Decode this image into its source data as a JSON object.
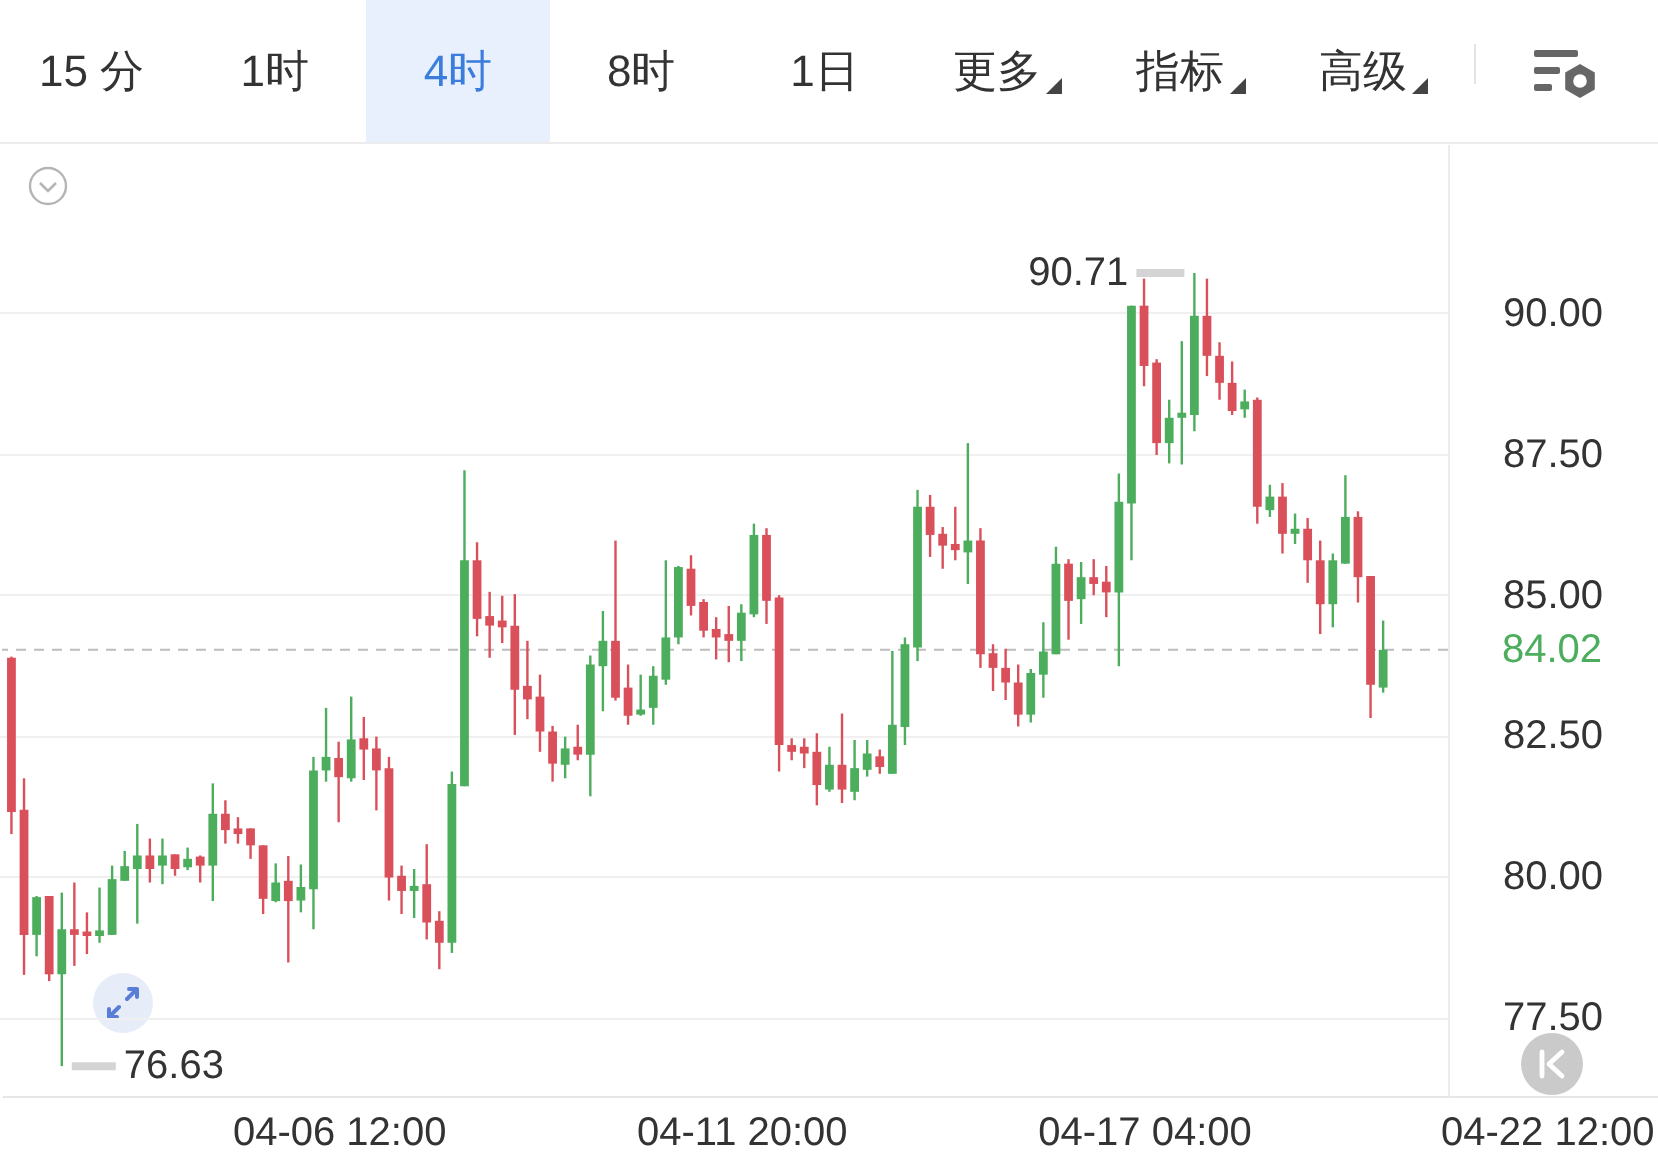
{
  "chart_data": {
    "type": "candlestick",
    "x": [
      "--04-02T04:00",
      "--04-02T08:00",
      "--04-02T12:00",
      "--04-02T16:00",
      "--04-02T20:00",
      "--04-03T00:00",
      "--04-03T04:00",
      "--04-03T08:00",
      "--04-03T12:00",
      "--04-03T16:00",
      "--04-03T20:00",
      "--04-04T00:00",
      "--04-04T04:00",
      "--04-04T08:00",
      "--04-04T12:00",
      "--04-04T16:00",
      "--04-04T20:00",
      "--04-05T00:00",
      "--04-05T04:00",
      "--04-05T08:00",
      "--04-05T12:00",
      "--04-05T16:00",
      "--04-05T20:00",
      "--04-06T00:00",
      "--04-06T04:00",
      "--04-06T08:00",
      "--04-06T12:00",
      "--04-06T16:00",
      "--04-06T20:00",
      "--04-07T00:00",
      "--04-07T04:00",
      "--04-07T08:00",
      "--04-07T12:00",
      "--04-07T16:00",
      "--04-07T20:00",
      "--04-08T00:00",
      "--04-08T04:00",
      "--04-08T08:00",
      "--04-08T12:00",
      "--04-08T16:00",
      "--04-08T20:00",
      "--04-09T00:00",
      "--04-09T04:00",
      "--04-09T08:00",
      "--04-09T12:00",
      "--04-09T16:00",
      "--04-09T20:00",
      "--04-10T00:00",
      "--04-10T04:00",
      "--04-10T08:00",
      "--04-10T12:00",
      "--04-10T16:00",
      "--04-10T20:00",
      "--04-11T00:00",
      "--04-11T04:00",
      "--04-11T08:00",
      "--04-11T12:00",
      "--04-11T16:00",
      "--04-11T20:00",
      "--04-12T00:00",
      "--04-12T04:00",
      "--04-12T08:00",
      "--04-12T12:00",
      "--04-12T16:00",
      "--04-12T20:00",
      "--04-13T00:00",
      "--04-13T04:00",
      "--04-13T08:00",
      "--04-13T12:00",
      "--04-13T16:00",
      "--04-13T20:00",
      "--04-14T00:00",
      "--04-14T04:00",
      "--04-14T08:00",
      "--04-14T12:00",
      "--04-14T16:00",
      "--04-14T20:00",
      "--04-15T00:00",
      "--04-15T04:00",
      "--04-15T08:00",
      "--04-15T12:00",
      "--04-15T16:00",
      "--04-15T20:00",
      "--04-16T00:00",
      "--04-16T04:00",
      "--04-16T08:00",
      "--04-16T12:00",
      "--04-16T16:00",
      "--04-16T20:00",
      "--04-17T00:00",
      "--04-17T04:00",
      "--04-17T08:00",
      "--04-17T12:00",
      "--04-17T16:00",
      "--04-17T20:00",
      "--04-18T00:00",
      "--04-18T04:00",
      "--04-18T08:00",
      "--04-18T12:00",
      "--04-18T16:00",
      "--04-18T20:00",
      "--04-19T00:00",
      "--04-19T04:00",
      "--04-19T08:00",
      "--04-19T12:00",
      "--04-19T16:00",
      "--04-19T20:00",
      "--04-20T00:00",
      "--04-20T04:00",
      "--04-20T08:00"
    ],
    "ohlc": [
      [
        83.88,
        83.9,
        80.75,
        81.14
      ],
      [
        81.18,
        81.74,
        78.25,
        78.96
      ],
      [
        78.96,
        79.65,
        78.58,
        79.63
      ],
      [
        79.65,
        79.65,
        78.14,
        78.26
      ],
      [
        78.26,
        79.71,
        76.63,
        79.06
      ],
      [
        79.06,
        79.89,
        78.41,
        78.96
      ],
      [
        79.02,
        79.36,
        78.62,
        78.94
      ],
      [
        78.94,
        79.8,
        78.82,
        79.04
      ],
      [
        78.96,
        80.19,
        78.96,
        79.95
      ],
      [
        79.92,
        80.45,
        79.92,
        80.18
      ],
      [
        80.13,
        80.93,
        79.16,
        80.37
      ],
      [
        80.37,
        80.67,
        79.89,
        80.13
      ],
      [
        80.19,
        80.67,
        79.86,
        80.37
      ],
      [
        80.39,
        80.39,
        80.01,
        80.13
      ],
      [
        80.16,
        80.51,
        80.11,
        80.31
      ],
      [
        80.35,
        80.37,
        79.89,
        80.19
      ],
      [
        80.19,
        81.65,
        79.56,
        81.11
      ],
      [
        81.11,
        81.35,
        80.58,
        80.82
      ],
      [
        80.85,
        81.05,
        80.58,
        80.75
      ],
      [
        80.85,
        80.85,
        80.31,
        80.55
      ],
      [
        80.55,
        80.55,
        79.33,
        79.6
      ],
      [
        79.56,
        80.23,
        79.54,
        79.89
      ],
      [
        79.92,
        80.36,
        78.47,
        79.56
      ],
      [
        79.57,
        80.21,
        79.36,
        79.81
      ],
      [
        79.77,
        82.12,
        79.06,
        81.88
      ],
      [
        81.88,
        82.99,
        81.68,
        82.12
      ],
      [
        82.1,
        82.39,
        80.96,
        81.76
      ],
      [
        81.74,
        83.19,
        81.68,
        82.43
      ],
      [
        82.45,
        82.83,
        81.71,
        82.25
      ],
      [
        82.27,
        82.48,
        81.17,
        81.88
      ],
      [
        81.92,
        82.12,
        79.57,
        79.98
      ],
      [
        80.01,
        80.19,
        79.33,
        79.74
      ],
      [
        79.74,
        80.13,
        79.26,
        79.83
      ],
      [
        79.86,
        80.57,
        78.88,
        79.18
      ],
      [
        79.21,
        79.38,
        78.35,
        78.82
      ],
      [
        78.82,
        81.86,
        78.64,
        81.64
      ],
      [
        81.6,
        87.21,
        81.6,
        85.61
      ],
      [
        85.61,
        85.93,
        84.26,
        84.57
      ],
      [
        84.62,
        85.05,
        83.88,
        84.45
      ],
      [
        84.54,
        84.98,
        84.14,
        84.42
      ],
      [
        84.45,
        85.01,
        82.51,
        83.31
      ],
      [
        83.38,
        84.18,
        82.79,
        83.14
      ],
      [
        83.19,
        83.58,
        82.21,
        82.57
      ],
      [
        82.57,
        82.67,
        81.68,
        82.0
      ],
      [
        81.98,
        82.48,
        81.74,
        82.27
      ],
      [
        82.3,
        82.69,
        82.06,
        82.16
      ],
      [
        82.16,
        83.92,
        81.42,
        83.76
      ],
      [
        83.73,
        84.71,
        82.93,
        84.18
      ],
      [
        84.18,
        85.96,
        83.12,
        83.17
      ],
      [
        83.35,
        83.76,
        82.69,
        82.85
      ],
      [
        82.87,
        83.58,
        82.85,
        82.96
      ],
      [
        82.99,
        83.73,
        82.69,
        83.56
      ],
      [
        83.49,
        85.61,
        83.4,
        84.24
      ],
      [
        84.24,
        85.51,
        84.12,
        85.49
      ],
      [
        85.46,
        85.7,
        84.63,
        84.8
      ],
      [
        84.87,
        84.92,
        84.24,
        84.36
      ],
      [
        84.39,
        84.6,
        83.85,
        84.24
      ],
      [
        84.3,
        84.8,
        83.8,
        84.18
      ],
      [
        84.18,
        84.83,
        83.82,
        84.68
      ],
      [
        84.65,
        86.26,
        84.6,
        86.06
      ],
      [
        86.06,
        86.18,
        84.48,
        84.89
      ],
      [
        84.95,
        84.99,
        81.86,
        82.33
      ],
      [
        82.33,
        82.45,
        82.06,
        82.21
      ],
      [
        82.3,
        82.45,
        81.92,
        82.18
      ],
      [
        82.21,
        82.54,
        81.26,
        81.62
      ],
      [
        81.54,
        82.3,
        81.5,
        81.98
      ],
      [
        81.98,
        82.89,
        81.3,
        81.54
      ],
      [
        81.5,
        82.42,
        81.35,
        81.92
      ],
      [
        81.89,
        82.42,
        81.77,
        82.18
      ],
      [
        82.13,
        82.25,
        81.82,
        81.94
      ],
      [
        81.82,
        84.0,
        81.82,
        82.69
      ],
      [
        82.65,
        84.24,
        82.33,
        84.12
      ],
      [
        84.06,
        86.86,
        83.82,
        86.56
      ],
      [
        86.56,
        86.77,
        85.67,
        86.06
      ],
      [
        86.08,
        86.2,
        85.46,
        85.87
      ],
      [
        85.9,
        86.56,
        85.61,
        85.79
      ],
      [
        85.75,
        87.69,
        85.19,
        85.96
      ],
      [
        85.96,
        86.18,
        83.7,
        83.94
      ],
      [
        83.96,
        84.12,
        83.29,
        83.7
      ],
      [
        83.7,
        84.04,
        83.13,
        83.44
      ],
      [
        83.44,
        83.76,
        82.66,
        82.87
      ],
      [
        82.87,
        83.68,
        82.73,
        83.61
      ],
      [
        83.58,
        84.51,
        83.17,
        83.99
      ],
      [
        83.94,
        85.85,
        83.94,
        85.55
      ],
      [
        85.55,
        85.63,
        84.2,
        84.89
      ],
      [
        84.92,
        85.58,
        84.48,
        85.31
      ],
      [
        85.31,
        85.63,
        84.99,
        85.19
      ],
      [
        85.23,
        85.51,
        84.6,
        85.04
      ],
      [
        85.04,
        87.15,
        83.73,
        86.65
      ],
      [
        86.62,
        90.13,
        85.61,
        90.13
      ],
      [
        90.13,
        90.61,
        88.7,
        89.06
      ],
      [
        89.12,
        89.18,
        87.48,
        87.69
      ],
      [
        87.69,
        88.46,
        87.33,
        88.14
      ],
      [
        88.14,
        89.5,
        87.31,
        88.23
      ],
      [
        88.19,
        90.71,
        87.9,
        89.95
      ],
      [
        89.95,
        90.61,
        88.88,
        89.24
      ],
      [
        89.24,
        89.48,
        88.46,
        88.76
      ],
      [
        88.76,
        89.14,
        88.19,
        88.26
      ],
      [
        88.29,
        88.64,
        88.14,
        88.43
      ],
      [
        88.46,
        88.5,
        86.26,
        86.56
      ],
      [
        86.5,
        86.95,
        86.38,
        86.74
      ],
      [
        86.74,
        86.98,
        85.73,
        86.08
      ],
      [
        86.08,
        86.44,
        85.9,
        86.17
      ],
      [
        86.17,
        86.36,
        85.21,
        85.61
      ],
      [
        85.61,
        85.96,
        84.3,
        84.83
      ],
      [
        84.83,
        85.73,
        84.42,
        85.61
      ],
      [
        85.55,
        87.12,
        85.55,
        86.38
      ],
      [
        86.38,
        86.48,
        84.86,
        85.31
      ],
      [
        85.33,
        85.33,
        82.81,
        83.4
      ],
      [
        83.35,
        84.54,
        83.26,
        84.02
      ]
    ],
    "colors": [
      "#d9505b",
      "#d9505b",
      "#4cae5c",
      "#d9505b",
      "#4cae5c",
      "#d9505b",
      "#d9505b",
      "#4cae5c",
      "#4cae5c",
      "#4cae5c",
      "#4cae5c",
      "#d9505b",
      "#4cae5c",
      "#d9505b",
      "#4cae5c",
      "#d9505b",
      "#4cae5c",
      "#d9505b",
      "#d9505b",
      "#d9505b",
      "#d9505b",
      "#4cae5c",
      "#d9505b",
      "#4cae5c",
      "#4cae5c",
      "#4cae5c",
      "#d9505b",
      "#4cae5c",
      "#d9505b",
      "#d9505b",
      "#d9505b",
      "#d9505b",
      "#4cae5c",
      "#d9505b",
      "#d9505b",
      "#4cae5c",
      "#4cae5c",
      "#d9505b",
      "#d9505b",
      "#d9505b",
      "#d9505b",
      "#d9505b",
      "#d9505b",
      "#d9505b",
      "#4cae5c",
      "#d9505b",
      "#4cae5c",
      "#4cae5c",
      "#d9505b",
      "#d9505b",
      "#4cae5c",
      "#4cae5c",
      "#4cae5c",
      "#4cae5c",
      "#d9505b",
      "#d9505b",
      "#d9505b",
      "#d9505b",
      "#4cae5c",
      "#4cae5c",
      "#d9505b",
      "#d9505b",
      "#d9505b",
      "#d9505b",
      "#d9505b",
      "#4cae5c",
      "#d9505b",
      "#4cae5c",
      "#4cae5c",
      "#d9505b",
      "#4cae5c",
      "#4cae5c",
      "#4cae5c",
      "#d9505b",
      "#d9505b",
      "#d9505b",
      "#4cae5c",
      "#d9505b",
      "#d9505b",
      "#d9505b",
      "#d9505b",
      "#4cae5c",
      "#4cae5c",
      "#4cae5c",
      "#d9505b",
      "#4cae5c",
      "#d9505b",
      "#d9505b",
      "#4cae5c",
      "#4cae5c",
      "#d9505b",
      "#d9505b",
      "#4cae5c",
      "#4cae5c",
      "#4cae5c",
      "#d9505b",
      "#d9505b",
      "#d9505b",
      "#4cae5c",
      "#d9505b",
      "#4cae5c",
      "#d9505b",
      "#4cae5c",
      "#d9505b",
      "#d9505b",
      "#4cae5c",
      "#4cae5c",
      "#d9505b",
      "#d9505b",
      "#4cae5c"
    ],
    "xlim": [
      "--04-02T01:00",
      "--04-24T00:00"
    ],
    "xticks": [
      {
        "value": "--04-06T12:00",
        "label": "04-06 12:00"
      },
      {
        "value": "--04-11T20:00",
        "label": "04-11 20:00"
      },
      {
        "value": "--04-17T04:00",
        "label": "04-17 04:00"
      },
      {
        "value": "--04-22T12:00",
        "label": "04-22 12:00"
      }
    ],
    "ylim": [
      76.1,
      93.0
    ],
    "yticks": [
      {
        "value": 77.5,
        "label": "77.50"
      },
      {
        "value": 80,
        "label": "80.00"
      },
      {
        "value": 82.5,
        "label": "82.50"
      },
      {
        "value": 85,
        "label": "85.00"
      },
      {
        "value": 87.5,
        "label": "87.50"
      },
      {
        "value": 90,
        "label": "90.00"
      }
    ],
    "grid": "y",
    "ref_lines": [
      {
        "axis": "y",
        "value": 84.02,
        "label": "84.02",
        "color": "#bdbdbd",
        "line_style": "dashed"
      }
    ],
    "annotations": [
      "15 分",
      "1时",
      "4时",
      "8时",
      "1日",
      "更多",
      "指标",
      "高级",
      {
        "text": "90.71",
        "x": "--04-17T20:00",
        "y": 90.71
      },
      {
        "text": "76.63",
        "x": "--04-02T20:00",
        "y": 76.63
      }
    ]
  }
}
